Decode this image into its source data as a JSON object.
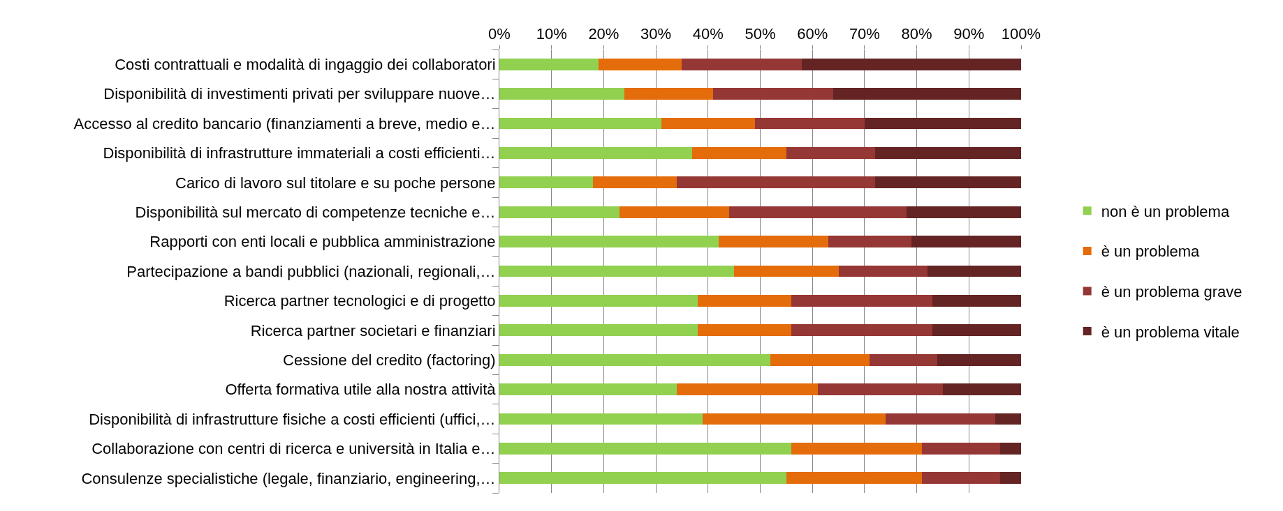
{
  "chart_data": {
    "type": "bar",
    "orientation": "horizontal",
    "stacked": true,
    "categories": [
      "Costi contrattuali e modalità di ingaggio dei collaboratori",
      "Disponibilità di investimenti privati per sviluppare nuove…",
      "Accesso al credito bancario (finanziamenti a breve, medio e…",
      "Disponibilità di infrastrutture immateriali a costi efficienti…",
      "Carico di lavoro sul titolare e su poche persone",
      "Disponibilità sul mercato di competenze tecniche e…",
      "Rapporti con enti locali e pubblica amministrazione",
      "Partecipazione a bandi pubblici (nazionali, regionali,…",
      "Ricerca partner tecnologici e di progetto",
      "Ricerca partner societari e finanziari",
      "Cessione del credito (factoring)",
      "Offerta formativa utile alla nostra attività",
      "Disponibilità di infrastrutture fisiche a costi efficienti (uffici,…",
      "Collaborazione con centri di ricerca e università in Italia e…",
      "Consulenze specialistiche (legale, finanziario, engineering,…"
    ],
    "series": [
      {
        "name": "non è un problema",
        "color": "#92d050",
        "values": [
          19,
          24,
          31,
          37,
          18,
          23,
          42,
          45,
          38,
          38,
          52,
          34,
          39,
          56,
          55
        ]
      },
      {
        "name": "è un problema",
        "color": "#e46c0a",
        "values": [
          16,
          17,
          18,
          18,
          16,
          21,
          21,
          20,
          18,
          18,
          19,
          27,
          35,
          25,
          26
        ]
      },
      {
        "name": "è un problema grave",
        "color": "#953735",
        "values": [
          23,
          23,
          21,
          17,
          38,
          34,
          16,
          17,
          27,
          27,
          13,
          24,
          21,
          15,
          15
        ]
      },
      {
        "name": "è un problema vitale",
        "color": "#632423",
        "values": [
          42,
          36,
          30,
          28,
          28,
          22,
          21,
          18,
          17,
          17,
          16,
          15,
          5,
          4,
          4
        ]
      }
    ],
    "xlim": [
      0,
      100
    ],
    "xticks": [
      {
        "value": 0,
        "label": "0%"
      },
      {
        "value": 10,
        "label": "10%"
      },
      {
        "value": 20,
        "label": "20%"
      },
      {
        "value": 30,
        "label": "30%"
      },
      {
        "value": 40,
        "label": "40%"
      },
      {
        "value": 50,
        "label": "50%"
      },
      {
        "value": 60,
        "label": "60%"
      },
      {
        "value": 70,
        "label": "70%"
      },
      {
        "value": 80,
        "label": "80%"
      },
      {
        "value": 90,
        "label": "90%"
      },
      {
        "value": 100,
        "label": "100%"
      }
    ],
    "grid": "x",
    "legend": "right"
  }
}
